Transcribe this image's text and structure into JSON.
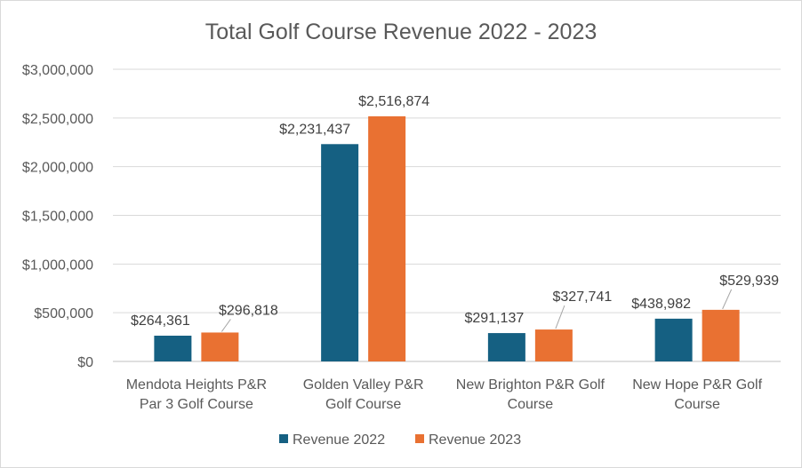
{
  "chart_data": {
    "type": "bar",
    "title": "Total Golf Course Revenue 2022  - 2023",
    "categories": [
      [
        "Mendota Heights P&R",
        "Par 3 Golf Course"
      ],
      [
        "Golden Valley P&R",
        "Golf Course"
      ],
      [
        "New Brighton P&R Golf",
        "Course"
      ],
      [
        "New Hope P&R Golf",
        "Course"
      ]
    ],
    "series": [
      {
        "name": "Revenue 2022",
        "color": "#156082",
        "values": [
          264361,
          2231437,
          291137,
          438982
        ],
        "labels": [
          "$264,361",
          "$2,231,437",
          "$291,137",
          "$438,982"
        ]
      },
      {
        "name": "Revenue 2023",
        "color": "#e97132",
        "values": [
          296818,
          2516874,
          327741,
          529939
        ],
        "labels": [
          "$296,818",
          "$2,516,874",
          "$327,741",
          "$529,939"
        ]
      }
    ],
    "ylim": [
      0,
      3000000
    ],
    "yticks": [
      0,
      500000,
      1000000,
      1500000,
      2000000,
      2500000,
      3000000
    ],
    "ytick_labels": [
      "$0",
      "$500,000",
      "$1,000,000",
      "$1,500,000",
      "$2,000,000",
      "$2,500,000",
      "$3,000,000"
    ],
    "xlabel": "",
    "ylabel": "",
    "grid": true,
    "legend": "bottom"
  }
}
